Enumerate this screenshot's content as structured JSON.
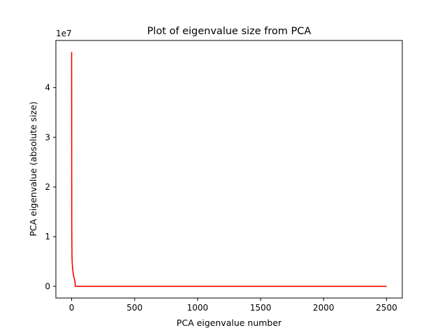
{
  "chart_data": {
    "type": "line",
    "title": "Plot of eigenvalue size from PCA",
    "xlabel": "PCA eigenvalue number",
    "ylabel": "PCA eigenvalue (absolute size)",
    "y_offset_label": "1e7",
    "xlim": [
      -125,
      2625
    ],
    "ylim": [
      -2350000,
      49500000
    ],
    "x_ticks": [
      0,
      500,
      1000,
      1500,
      2000,
      2500
    ],
    "x_tick_labels": [
      "0",
      "500",
      "1000",
      "1500",
      "2000",
      "2500"
    ],
    "y_ticks": [
      0,
      10000000,
      20000000,
      30000000,
      40000000
    ],
    "y_tick_labels": [
      "0",
      "1",
      "2",
      "3",
      "4"
    ],
    "grid": false,
    "series": [
      {
        "color": "#ff0000",
        "x": [
          0,
          1,
          2,
          3,
          5,
          8,
          12,
          18,
          25,
          30,
          100,
          500,
          1000,
          1500,
          2000,
          2500
        ],
        "y": [
          47200000,
          12000000,
          8500000,
          6000000,
          4500000,
          3500000,
          2700000,
          1800000,
          1200000,
          0,
          0,
          0,
          0,
          0,
          0,
          0
        ]
      }
    ]
  }
}
